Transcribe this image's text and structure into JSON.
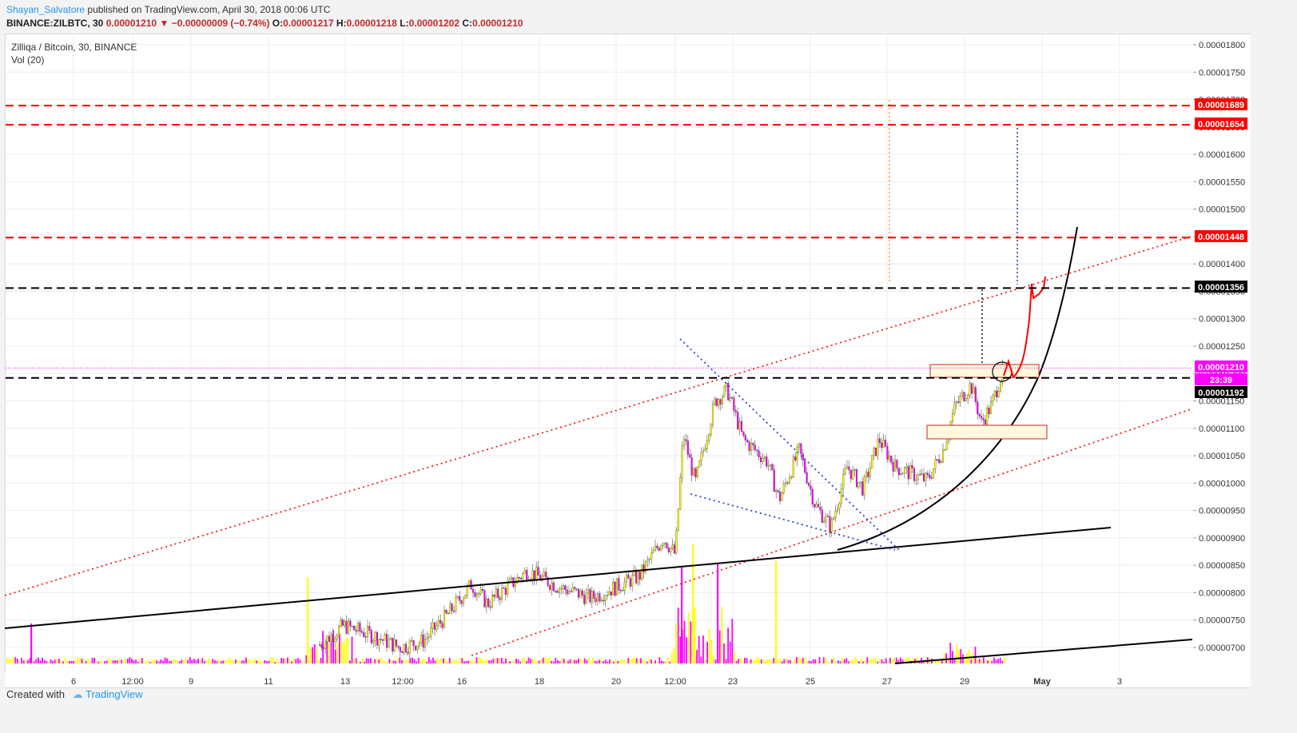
{
  "header": {
    "author": "Shayan_Salvatore",
    "published_text": " published on TradingView.com, April 30, 2018 00:06 UTC",
    "symbol_line": "BINANCE:ZILBTC, 30",
    "close_val": "0.00001210",
    "change_arrow": "▼",
    "change_val": "−0.00000009 (−0.74%)",
    "o_label": "O:",
    "o_val": "0.00001217",
    "h_label": "H:",
    "h_val": "0.00001218",
    "l_label": "L:",
    "l_val": "0.00001202",
    "c_label": "C:",
    "c_val": "0.00001210"
  },
  "legend": {
    "title": "Zilliqa / Bitcoin, 30, BINANCE",
    "volume": "Vol (20)"
  },
  "footer": {
    "created_with": "Created with",
    "brand": "TradingView"
  },
  "chart_data": {
    "type": "candlestick",
    "y_ticks": [
      "0.00001800",
      "0.00001750",
      "0.00001700",
      "0.00001650",
      "0.00001600",
      "0.00001550",
      "0.00001500",
      "0.00001450",
      "0.00001400",
      "0.00001350",
      "0.00001300",
      "0.00001250",
      "0.00001200",
      "0.00001150",
      "0.00001100",
      "0.00001050",
      "0.00001000",
      "0.00000950",
      "0.00000900",
      "0.00000850",
      "0.00000800",
      "0.00000750",
      "0.00000700"
    ],
    "x_ticks": [
      "6",
      "12:00",
      "9",
      "11",
      "13",
      "12:00",
      "16",
      "18",
      "20",
      "12:00",
      "23",
      "25",
      "27",
      "29",
      "May",
      "3"
    ],
    "price_badges": [
      {
        "label": "0.00001689",
        "color": "#ff0000"
      },
      {
        "label": "0.00001654",
        "color": "#ff0000"
      },
      {
        "label": "0.00001448",
        "color": "#ff0000"
      },
      {
        "label": "0.00001356",
        "color": "#000000"
      },
      {
        "label": "0.00001210",
        "color": "#ff00ff"
      },
      {
        "label": "23:39",
        "color": "#ff00ff"
      },
      {
        "label": "0.00001192",
        "color": "#000000"
      }
    ],
    "horizontal_levels": [
      {
        "price": 1.689e-05,
        "color": "#ff0000",
        "style": "dashed"
      },
      {
        "price": 1.654e-05,
        "color": "#ff0000",
        "style": "dashed"
      },
      {
        "price": 1.448e-05,
        "color": "#ff0000",
        "style": "dashed"
      },
      {
        "price": 1.356e-05,
        "color": "#000000",
        "style": "dashed"
      },
      {
        "price": 1.192e-05,
        "color": "#000000",
        "style": "dashed"
      },
      {
        "price": 1.21e-05,
        "color": "#ff00ff",
        "style": "dotted"
      }
    ],
    "colors": {
      "up": "#ffff00",
      "down": "#ff00ff",
      "grid": "#e8eef2"
    }
  }
}
